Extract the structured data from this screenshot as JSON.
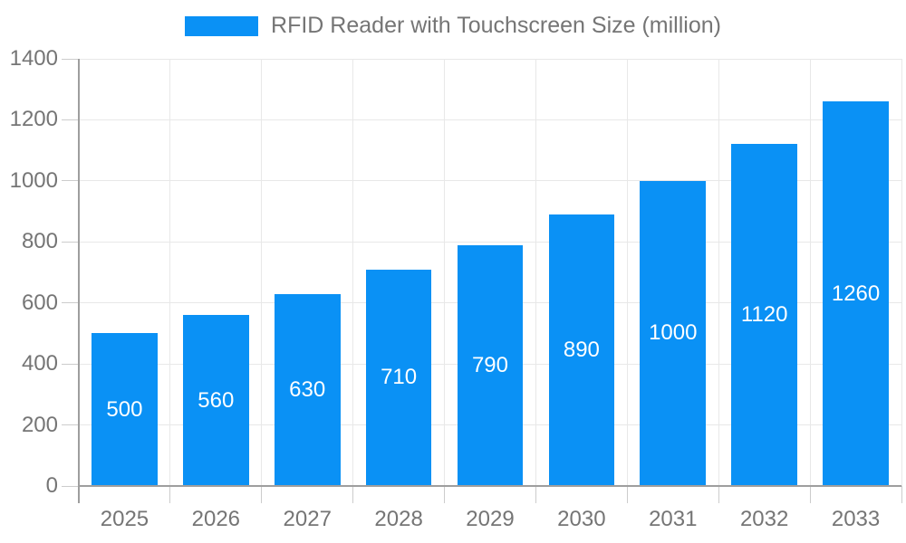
{
  "legend": {
    "label": "RFID Reader with Touchscreen Size (million)"
  },
  "colors": {
    "bar": "#0a91f5",
    "bar_label": "#ffffff",
    "axis": "#9e9e9e",
    "grid": "#e8e8e8",
    "tick": "#cccccc",
    "text": "#757575",
    "background": "#ffffff"
  },
  "chart_data": {
    "type": "bar",
    "title": "RFID Reader with Touchscreen Size (million)",
    "categories": [
      "2025",
      "2026",
      "2027",
      "2028",
      "2029",
      "2030",
      "2031",
      "2032",
      "2033"
    ],
    "values": [
      500,
      560,
      630,
      710,
      790,
      890,
      1000,
      1120,
      1260
    ],
    "xlabel": "",
    "ylabel": "",
    "ylim": [
      0,
      1400
    ],
    "ytick_step": 200,
    "ytick_labels": [
      "0",
      "200",
      "400",
      "600",
      "800",
      "1000",
      "1200",
      "1400"
    ],
    "grid": true,
    "legend_position": "top",
    "bar_label_position": "inside-center"
  }
}
